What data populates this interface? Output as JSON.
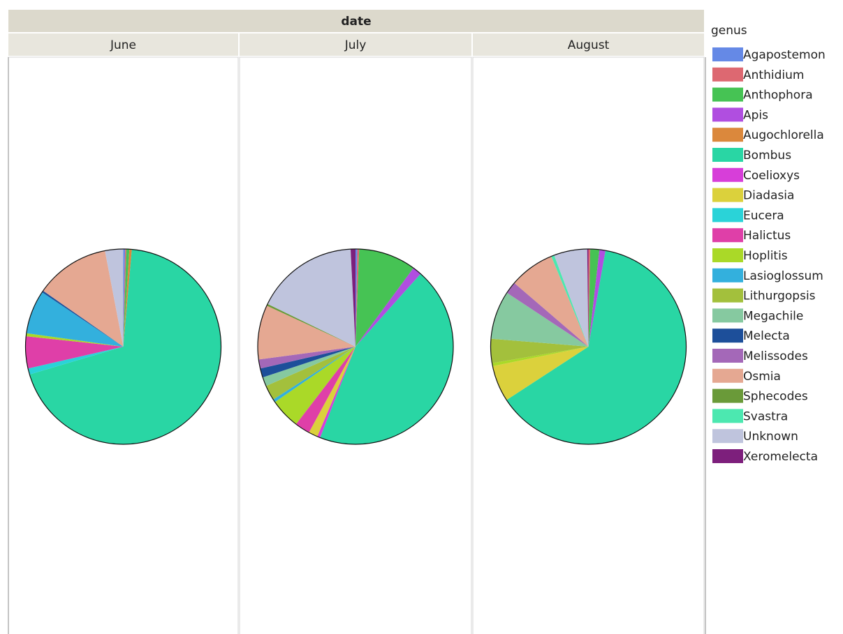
{
  "chart_data": {
    "type": "pie",
    "facet_label": "date",
    "legend_title": "genus",
    "categories": [
      "Agapostemon",
      "Anthidium",
      "Anthophora",
      "Apis",
      "Augochlorella",
      "Bombus",
      "Coelioxys",
      "Diadasia",
      "Eucera",
      "Halictus",
      "Hoplitis",
      "Lasioglossum",
      "Lithurgopsis",
      "Megachile",
      "Melecta",
      "Melissodes",
      "Osmia",
      "Sphecodes",
      "Svastra",
      "Unknown",
      "Xeromelecta"
    ],
    "colors": [
      "#6589e6",
      "#dd6871",
      "#46c354",
      "#b04ee0",
      "#db883c",
      "#29d6a4",
      "#d73ed9",
      "#dbd13c",
      "#2ad3d8",
      "#df3fa8",
      "#aad928",
      "#33b0dd",
      "#a3c03c",
      "#86c9a0",
      "#1d4f9a",
      "#a468b8",
      "#e5a892",
      "#6a9a39",
      "#4ce8b0",
      "#bfc4dd",
      "#7d1f7c"
    ],
    "facets": [
      {
        "title": "June",
        "values": [
          0.3,
          0.2,
          0.5,
          0,
          0.4,
          69,
          0,
          0,
          1,
          5.3,
          0.5,
          7.2,
          0,
          0,
          0.3,
          0,
          12.3,
          0,
          0,
          3,
          0
        ]
      },
      {
        "title": "July",
        "values": [
          0.3,
          0.3,
          9.5,
          1.5,
          0,
          44.3,
          0.5,
          1.5,
          0,
          2.5,
          5,
          0.5,
          2.5,
          1.5,
          1.5,
          1.5,
          9,
          0.3,
          0,
          17,
          0.8
        ]
      },
      {
        "title": "August",
        "values": [
          0,
          0.3,
          1.5,
          1,
          0,
          63,
          0,
          6,
          0,
          0,
          0.5,
          0,
          4,
          8,
          0,
          2,
          7.5,
          0,
          0.5,
          5.5,
          0.2
        ]
      }
    ]
  }
}
